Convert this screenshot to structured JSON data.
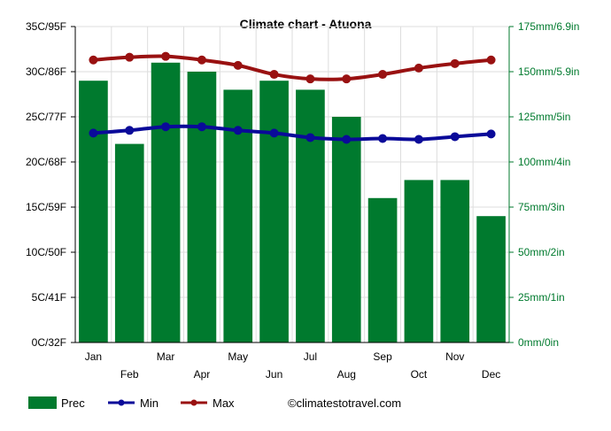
{
  "chart_data": {
    "type": "bar+line",
    "title": "Climate chart - Atuona",
    "categories": [
      "Jan",
      "Feb",
      "Mar",
      "Apr",
      "May",
      "Jun",
      "Jul",
      "Aug",
      "Sep",
      "Oct",
      "Nov",
      "Dec"
    ],
    "series": [
      {
        "name": "Prec",
        "type": "bar",
        "axis": "right",
        "color": "#007a2e",
        "values": [
          145,
          110,
          155,
          150,
          140,
          145,
          140,
          125,
          80,
          90,
          90,
          70
        ]
      },
      {
        "name": "Min",
        "type": "line",
        "axis": "left",
        "color": "#0a0a99",
        "values": [
          23.2,
          23.5,
          23.9,
          23.9,
          23.5,
          23.2,
          22.7,
          22.5,
          22.6,
          22.5,
          22.8,
          23.1
        ]
      },
      {
        "name": "Max",
        "type": "line",
        "axis": "left",
        "color": "#991111",
        "values": [
          31.3,
          31.6,
          31.7,
          31.3,
          30.7,
          29.7,
          29.2,
          29.2,
          29.7,
          30.4,
          30.9,
          31.3
        ]
      }
    ],
    "left_axis": {
      "ylim": [
        0,
        35
      ],
      "ticks": [
        "0C/32F",
        "5C/41F",
        "10C/50F",
        "15C/59F",
        "20C/68F",
        "25C/77F",
        "30C/86F",
        "35C/95F"
      ]
    },
    "right_axis": {
      "ylim": [
        0,
        175
      ],
      "ticks": [
        "0mm/0in",
        "25mm/1in",
        "50mm/2in",
        "75mm/3in",
        "100mm/4in",
        "125mm/5in",
        "150mm/5.9in",
        "175mm/6.9in"
      ]
    },
    "grid": true,
    "legend_position": "bottom-left"
  },
  "legend": {
    "prec": "Prec",
    "min": "Min",
    "max": "Max"
  },
  "credit": "©climatestotravel.com"
}
